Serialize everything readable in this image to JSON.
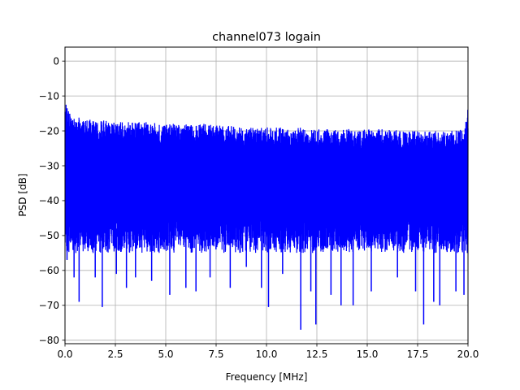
{
  "chart_data": {
    "type": "line",
    "title": "channel073 logain",
    "xlabel": "Frequency [MHz]",
    "ylabel": "PSD [dB]",
    "xlim": [
      0,
      20
    ],
    "ylim": [
      -81,
      4
    ],
    "xticks": [
      0,
      2.5,
      5,
      7.5,
      10,
      12.5,
      15,
      17.5,
      20
    ],
    "xtick_labels": [
      "0.0",
      "2.5",
      "5.0",
      "7.5",
      "10.0",
      "12.5",
      "15.0",
      "17.5",
      "20.0"
    ],
    "yticks": [
      0,
      -10,
      -20,
      -30,
      -40,
      -50,
      -60,
      -70,
      -80
    ],
    "ytick_labels": [
      "0",
      "−10",
      "−20",
      "−30",
      "−40",
      "−50",
      "−60",
      "−70",
      "−80"
    ],
    "grid": true,
    "legend": false,
    "line_color": "#0000ff",
    "series": [
      {
        "x": [
          0.0,
          0.1,
          0.25,
          0.5,
          1.0,
          1.5,
          2.0,
          2.5,
          3.0,
          4.0,
          5.0,
          6.0,
          7.0,
          7.5,
          8.0,
          9.0,
          10.0,
          11.0,
          12.0,
          12.5,
          13.0,
          14.0,
          15.0,
          16.0,
          17.0,
          17.5,
          18.0,
          19.0,
          19.8,
          20.0
        ],
        "upper_envelope": [
          -11,
          -13,
          -15,
          -16,
          -16.5,
          -17,
          -17,
          -17.5,
          -17.5,
          -17.5,
          -18,
          -18,
          -18,
          -18.5,
          -18.5,
          -19,
          -19,
          -19,
          -19,
          -19.5,
          -19.5,
          -19.5,
          -19.5,
          -19.5,
          -20,
          -20,
          -20,
          -20,
          -19.5,
          -13.5
        ],
        "dense_band": [
          -22,
          -52
        ]
      }
    ],
    "notable_minima": [
      {
        "x": 0.1,
        "y": -57
      },
      {
        "x": 0.45,
        "y": -62
      },
      {
        "x": 0.7,
        "y": -69
      },
      {
        "x": 1.5,
        "y": -62
      },
      {
        "x": 1.85,
        "y": -70.5
      },
      {
        "x": 2.55,
        "y": -61
      },
      {
        "x": 3.05,
        "y": -65
      },
      {
        "x": 3.5,
        "y": -62
      },
      {
        "x": 4.3,
        "y": -63
      },
      {
        "x": 5.2,
        "y": -67
      },
      {
        "x": 6.0,
        "y": -65
      },
      {
        "x": 6.5,
        "y": -66
      },
      {
        "x": 7.2,
        "y": -62
      },
      {
        "x": 8.2,
        "y": -65
      },
      {
        "x": 9.0,
        "y": -59
      },
      {
        "x": 9.75,
        "y": -65
      },
      {
        "x": 10.1,
        "y": -70.5
      },
      {
        "x": 10.8,
        "y": -61
      },
      {
        "x": 11.7,
        "y": -77
      },
      {
        "x": 12.2,
        "y": -66
      },
      {
        "x": 12.45,
        "y": -75.5
      },
      {
        "x": 13.2,
        "y": -67
      },
      {
        "x": 13.7,
        "y": -70
      },
      {
        "x": 14.3,
        "y": -70
      },
      {
        "x": 15.2,
        "y": -66
      },
      {
        "x": 16.5,
        "y": -62
      },
      {
        "x": 17.4,
        "y": -66
      },
      {
        "x": 17.8,
        "y": -75.5
      },
      {
        "x": 18.3,
        "y": -69
      },
      {
        "x": 18.6,
        "y": -70
      },
      {
        "x": 19.4,
        "y": -66
      },
      {
        "x": 19.8,
        "y": -67
      }
    ]
  }
}
